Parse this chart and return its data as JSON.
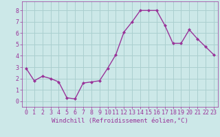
{
  "x": [
    0,
    1,
    2,
    3,
    4,
    5,
    6,
    7,
    8,
    9,
    10,
    11,
    12,
    13,
    14,
    15,
    16,
    17,
    18,
    19,
    20,
    21,
    22,
    23
  ],
  "y": [
    2.9,
    1.8,
    2.2,
    2.0,
    1.7,
    0.3,
    0.2,
    1.6,
    1.7,
    1.8,
    2.9,
    4.1,
    6.1,
    7.0,
    8.0,
    8.0,
    8.0,
    6.7,
    5.1,
    5.1,
    6.3,
    5.5,
    4.8,
    4.1
  ],
  "line_color": "#993399",
  "marker": "D",
  "marker_size": 2.0,
  "bg_color": "#cce8e8",
  "grid_color": "#aacfcf",
  "xlabel": "Windchill (Refroidissement éolien,°C)",
  "xlabel_color": "#993399",
  "tick_color": "#993399",
  "axis_color": "#993399",
  "xlim": [
    -0.5,
    23.5
  ],
  "ylim": [
    -0.5,
    8.8
  ],
  "yticks": [
    0,
    1,
    2,
    3,
    4,
    5,
    6,
    7,
    8
  ],
  "xticks": [
    0,
    1,
    2,
    3,
    4,
    5,
    6,
    7,
    8,
    9,
    10,
    11,
    12,
    13,
    14,
    15,
    16,
    17,
    18,
    19,
    20,
    21,
    22,
    23
  ],
  "tick_fontsize": 6.0,
  "xlabel_fontsize": 6.5,
  "linewidth": 1.0
}
